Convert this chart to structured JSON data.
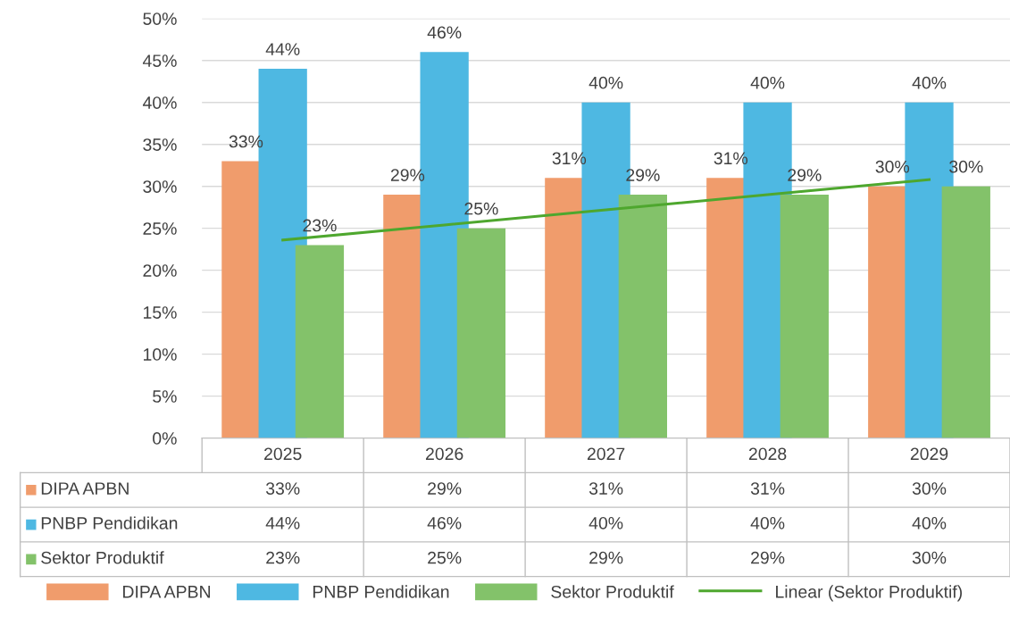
{
  "chart_data": {
    "type": "bar",
    "categories": [
      "2025",
      "2026",
      "2027",
      "2028",
      "2029"
    ],
    "series": [
      {
        "name": "DIPA APBN",
        "color": "#f09c6c",
        "values": [
          33,
          29,
          31,
          31,
          30
        ],
        "value_labels": [
          "33%",
          "29%",
          "31%",
          "31%",
          "30%"
        ]
      },
      {
        "name": "PNBP Pendidikan",
        "color": "#4eb8e2",
        "values": [
          44,
          46,
          40,
          40,
          40
        ],
        "value_labels": [
          "44%",
          "46%",
          "40%",
          "40%",
          "40%"
        ]
      },
      {
        "name": "Sektor Produktif",
        "color": "#83c26a",
        "values": [
          23,
          25,
          29,
          29,
          30
        ],
        "value_labels": [
          "23%",
          "25%",
          "29%",
          "29%",
          "30%"
        ]
      },
      {
        "name": "Linear (Sektor Produktif)",
        "type": "line",
        "color": "#4ea72e",
        "line_style": "solid",
        "values": [
          23.6,
          25.4,
          27.2,
          29.0,
          30.8
        ]
      }
    ],
    "ylim": [
      0,
      50
    ],
    "yticks": [
      {
        "value": 0,
        "label": "0%"
      },
      {
        "value": 5,
        "label": "5%"
      },
      {
        "value": 10,
        "label": "10%"
      },
      {
        "value": 15,
        "label": "15%"
      },
      {
        "value": 20,
        "label": "20%"
      },
      {
        "value": 25,
        "label": "25%"
      },
      {
        "value": 30,
        "label": "30%"
      },
      {
        "value": 35,
        "label": "35%"
      },
      {
        "value": 40,
        "label": "40%"
      },
      {
        "value": 45,
        "label": "45%"
      },
      {
        "value": 50,
        "label": "50%"
      }
    ],
    "grid": "y",
    "legend": "bottom"
  }
}
